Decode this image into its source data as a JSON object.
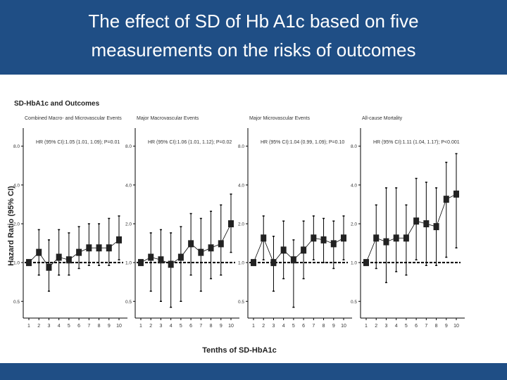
{
  "slide": {
    "title": "The effect of SD of Hb A1c  based on five\nmeasurements on the risks of outcomes",
    "header_color": "#1f4e85"
  },
  "figure": {
    "title": "SD-HbA1c and Outcomes",
    "ylabel": "Hazard Ratio (95% CI)",
    "xlabel": "Tenths of SD-HbA1c"
  },
  "chart_data": [
    {
      "type": "scatter",
      "title": "Combined Macro- and Microvascular Events",
      "annotation": "HR (95% CI):1.05 (1.01, 1.09); P=0.01",
      "x": [
        1,
        2,
        3,
        4,
        5,
        6,
        7,
        8,
        9,
        10
      ],
      "y": [
        1.0,
        1.2,
        0.92,
        1.1,
        1.05,
        1.2,
        1.3,
        1.3,
        1.3,
        1.5
      ],
      "ci_low": [
        null,
        0.8,
        0.6,
        0.8,
        0.8,
        0.9,
        0.95,
        0.95,
        0.95,
        1.05
      ],
      "ci_high": [
        null,
        1.8,
        1.5,
        1.8,
        1.7,
        1.9,
        2.0,
        2.0,
        2.2,
        2.3
      ],
      "ylim": [
        0.4,
        10
      ],
      "yscale": "log",
      "yticks": [
        0.5,
        1.0,
        2.0,
        4.0,
        8.0
      ],
      "reference_y": 1.0
    },
    {
      "type": "scatter",
      "title": "Major Macrovascular Events",
      "annotation": "HR (95% CI):1.06 (1.01, 1.12); P=0.02",
      "x": [
        1,
        2,
        3,
        4,
        5,
        6,
        7,
        8,
        9,
        10
      ],
      "y": [
        1.0,
        1.1,
        1.05,
        0.97,
        1.1,
        1.4,
        1.2,
        1.3,
        1.4,
        2.0
      ],
      "ci_low": [
        null,
        0.6,
        0.5,
        0.45,
        0.5,
        0.8,
        0.6,
        0.75,
        0.8,
        1.2
      ],
      "ci_high": [
        null,
        1.7,
        1.8,
        1.7,
        1.9,
        2.4,
        2.2,
        2.5,
        2.8,
        3.4
      ],
      "ylim": [
        0.4,
        10
      ],
      "yscale": "log",
      "yticks": [
        0.5,
        1.0,
        2.0,
        4.0,
        8.0
      ],
      "reference_y": 1.0
    },
    {
      "type": "scatter",
      "title": "Major Microvascular Events",
      "annotation": "HR (95% CI):1.04 (0.99, 1.09); P=0.10",
      "x": [
        1,
        2,
        3,
        4,
        5,
        6,
        7,
        8,
        9,
        10
      ],
      "y": [
        1.0,
        1.55,
        1.0,
        1.25,
        1.05,
        1.25,
        1.55,
        1.5,
        1.4,
        1.55
      ],
      "ci_low": [
        null,
        1.05,
        0.6,
        0.75,
        0.45,
        0.75,
        1.05,
        1.0,
        0.9,
        1.05
      ],
      "ci_high": [
        null,
        2.3,
        1.6,
        2.1,
        1.5,
        2.1,
        2.3,
        2.2,
        2.1,
        2.3
      ],
      "ylim": [
        0.4,
        10
      ],
      "yscale": "log",
      "yticks": [
        0.5,
        1.0,
        2.0,
        4.0,
        8.0
      ],
      "reference_y": 1.0
    },
    {
      "type": "scatter",
      "title": "All-cause Mortality",
      "annotation": "HR (95% CI):1.11 (1.04, 1.17); P<0.001",
      "x": [
        1,
        2,
        3,
        4,
        5,
        6,
        7,
        8,
        9,
        10
      ],
      "y": [
        1.0,
        1.55,
        1.45,
        1.55,
        1.55,
        2.1,
        2.0,
        1.9,
        3.1,
        3.4
      ],
      "ci_low": [
        null,
        0.9,
        0.7,
        0.85,
        0.8,
        1.05,
        0.95,
        0.95,
        1.1,
        1.3
      ],
      "ci_high": [
        null,
        2.8,
        3.8,
        3.8,
        2.8,
        4.5,
        4.2,
        3.8,
        6.0,
        7.0
      ],
      "ylim": [
        0.4,
        10
      ],
      "yscale": "log",
      "yticks": [
        0.5,
        1.0,
        2.0,
        4.0,
        8.0
      ],
      "reference_y": 1.0
    }
  ]
}
